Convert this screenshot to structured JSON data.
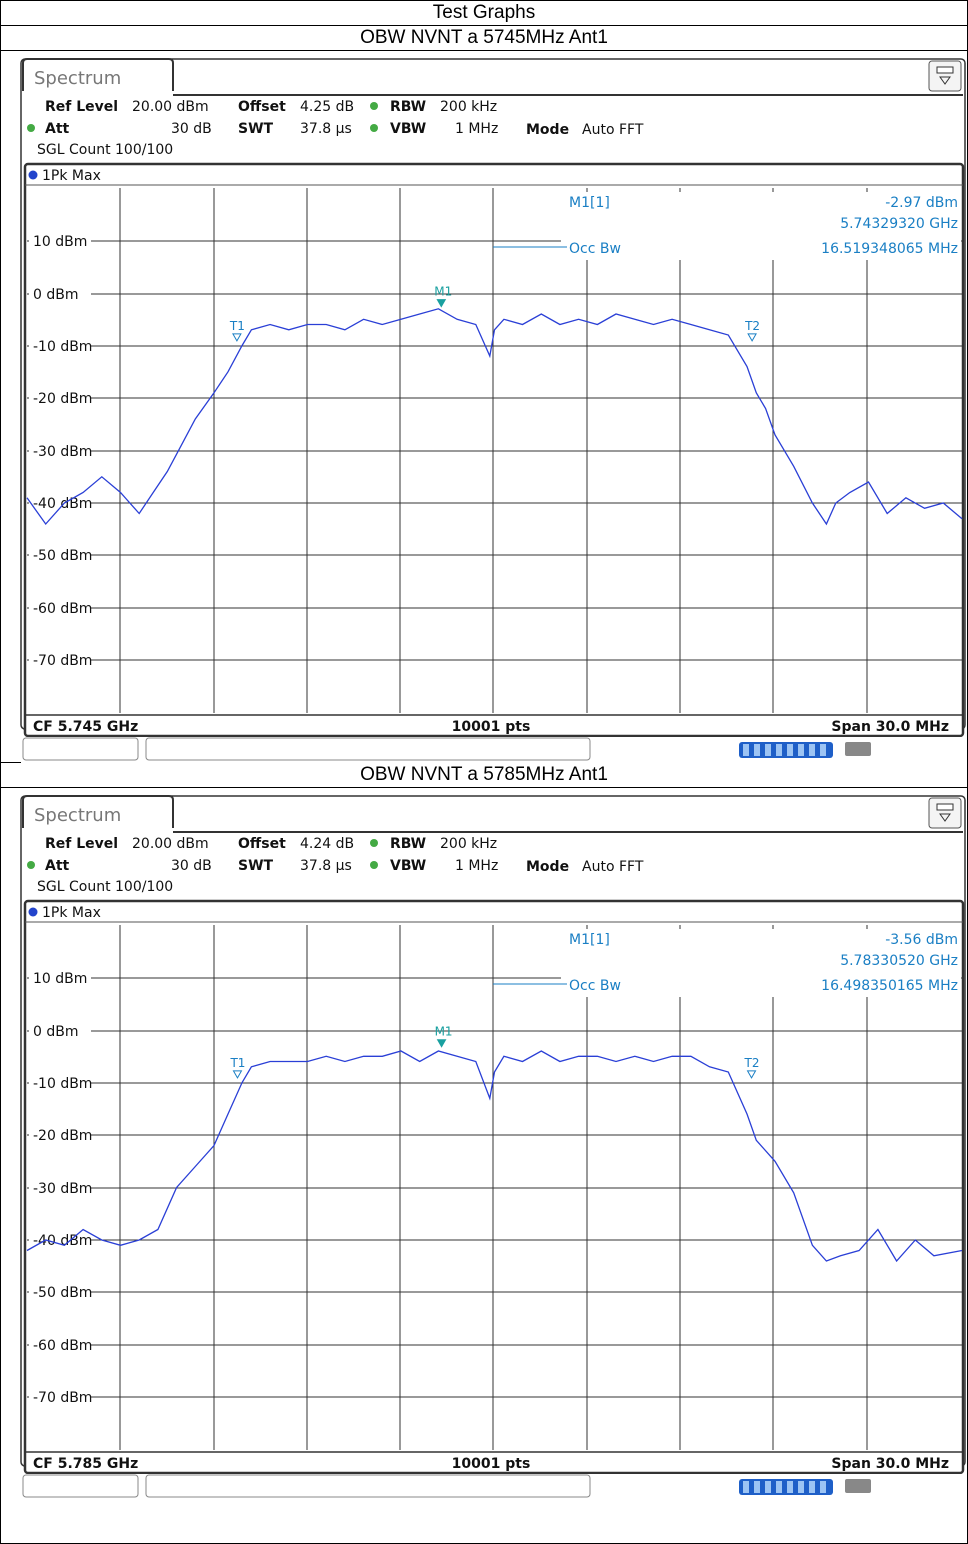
{
  "header": {
    "title": "Test Graphs"
  },
  "charts": [
    {
      "section_title": "OBW NVNT a 5745MHz Ant1",
      "tab": "Spectrum",
      "settings": {
        "ref_level_label": "Ref Level",
        "ref_level": "20.00 dBm",
        "offset_label": "Offset",
        "offset": "4.25 dB",
        "rbw_label": "RBW",
        "rbw": "200 kHz",
        "att_label": "Att",
        "att": "30 dB",
        "swt_label": "SWT",
        "swt": "37.8 µs",
        "vbw_label": "VBW",
        "vbw": "1 MHz",
        "mode_label": "Mode",
        "mode": "Auto FFT",
        "sgl": "SGL Count 100/100"
      },
      "trace_label": "1Pk Max",
      "marker": {
        "name": "M1[1]",
        "value": "-2.97 dBm",
        "freq": "5.74329320 GHz"
      },
      "occ_bw": {
        "label": "Occ Bw",
        "value": "16.519348065 MHz"
      },
      "footer": {
        "cf": "CF 5.745 GHz",
        "pts": "10001 pts",
        "span": "Span 30.0 MHz"
      }
    },
    {
      "section_title": "OBW NVNT a 5785MHz Ant1",
      "tab": "Spectrum",
      "settings": {
        "ref_level_label": "Ref Level",
        "ref_level": "20.00 dBm",
        "offset_label": "Offset",
        "offset": "4.24 dB",
        "rbw_label": "RBW",
        "rbw": "200 kHz",
        "att_label": "Att",
        "att": "30 dB",
        "swt_label": "SWT",
        "swt": "37.8 µs",
        "vbw_label": "VBW",
        "vbw": "1 MHz",
        "mode_label": "Mode",
        "mode": "Auto FFT",
        "sgl": "SGL Count 100/100"
      },
      "trace_label": "1Pk Max",
      "marker": {
        "name": "M1[1]",
        "value": "-3.56 dBm",
        "freq": "5.78330520 GHz"
      },
      "occ_bw": {
        "label": "Occ Bw",
        "value": "16.498350165 MHz"
      },
      "footer": {
        "cf": "CF 5.785 GHz",
        "pts": "10001 pts",
        "span": "Span 30.0 MHz"
      }
    }
  ],
  "chart_data": [
    {
      "type": "line",
      "ylabel": "",
      "xlabel": "",
      "ylim": [
        -80,
        20
      ],
      "yticks": [
        "10 dBm",
        "0 dBm",
        "-10 dBm",
        "-20 dBm",
        "-30 dBm",
        "-40 dBm",
        "-50 dBm",
        "-60 dBm",
        "-70 dBm"
      ],
      "grid": true,
      "markers": [
        {
          "name": "M1",
          "x": 0.4431,
          "y": -2.97
        },
        {
          "name": "T1",
          "x": 0.2245,
          "y": -9.5
        },
        {
          "name": "T2",
          "x": 0.7755,
          "y": -9.5
        }
      ],
      "series": [
        {
          "x": [
            0,
            0.02,
            0.04,
            0.06,
            0.08,
            0.1,
            0.12,
            0.135,
            0.15,
            0.165,
            0.18,
            0.2,
            0.215,
            0.23,
            0.24,
            0.26,
            0.28,
            0.3,
            0.32,
            0.34,
            0.36,
            0.38,
            0.4,
            0.42,
            0.44,
            0.46,
            0.48,
            0.495,
            0.5,
            0.51,
            0.53,
            0.55,
            0.57,
            0.59,
            0.61,
            0.63,
            0.65,
            0.67,
            0.69,
            0.71,
            0.73,
            0.75,
            0.77,
            0.78,
            0.79,
            0.8,
            0.82,
            0.84,
            0.855,
            0.865,
            0.88,
            0.9,
            0.92,
            0.94,
            0.96,
            0.98,
            1.0
          ],
          "values": [
            -39,
            -44,
            -40,
            -38,
            -35,
            -38,
            -42,
            -38,
            -34,
            -29,
            -24,
            -19,
            -15,
            -10,
            -7,
            -6,
            -7,
            -6,
            -6,
            -7,
            -5,
            -6,
            -5,
            -4,
            -3,
            -5,
            -6,
            -12,
            -7,
            -5,
            -6,
            -4,
            -6,
            -5,
            -6,
            -4,
            -5,
            -6,
            -5,
            -6,
            -7,
            -8,
            -14,
            -19,
            -22,
            -27,
            -33,
            -40,
            -44,
            -40,
            -38,
            -36,
            -42,
            -39,
            -41,
            -40,
            -43
          ]
        }
      ]
    },
    {
      "type": "line",
      "ylabel": "",
      "xlabel": "",
      "ylim": [
        -80,
        20
      ],
      "yticks": [
        "10 dBm",
        "0 dBm",
        "-10 dBm",
        "-20 dBm",
        "-30 dBm",
        "-40 dBm",
        "-50 dBm",
        "-60 dBm",
        "-70 dBm"
      ],
      "grid": true,
      "markers": [
        {
          "name": "M1",
          "x": 0.4434,
          "y": -3.56
        },
        {
          "name": "T1",
          "x": 0.2251,
          "y": -9.5
        },
        {
          "name": "T2",
          "x": 0.7749,
          "y": -9.5
        }
      ],
      "series": [
        {
          "x": [
            0,
            0.02,
            0.04,
            0.06,
            0.08,
            0.1,
            0.12,
            0.14,
            0.16,
            0.18,
            0.2,
            0.215,
            0.23,
            0.24,
            0.26,
            0.28,
            0.3,
            0.32,
            0.34,
            0.36,
            0.38,
            0.4,
            0.42,
            0.44,
            0.46,
            0.48,
            0.495,
            0.5,
            0.51,
            0.53,
            0.55,
            0.57,
            0.59,
            0.61,
            0.63,
            0.65,
            0.67,
            0.69,
            0.71,
            0.73,
            0.75,
            0.77,
            0.78,
            0.8,
            0.82,
            0.84,
            0.855,
            0.87,
            0.89,
            0.91,
            0.93,
            0.95,
            0.97,
            1.0
          ],
          "values": [
            -42,
            -40,
            -41,
            -38,
            -40,
            -41,
            -40,
            -38,
            -30,
            -26,
            -22,
            -16,
            -10,
            -7,
            -6,
            -6,
            -6,
            -5,
            -6,
            -5,
            -5,
            -4,
            -6,
            -4,
            -5,
            -6,
            -13,
            -8,
            -5,
            -6,
            -4,
            -6,
            -5,
            -5,
            -6,
            -5,
            -6,
            -5,
            -5,
            -7,
            -8,
            -16,
            -21,
            -25,
            -31,
            -41,
            -44,
            -43,
            -42,
            -38,
            -44,
            -40,
            -43,
            -42
          ]
        }
      ]
    }
  ]
}
